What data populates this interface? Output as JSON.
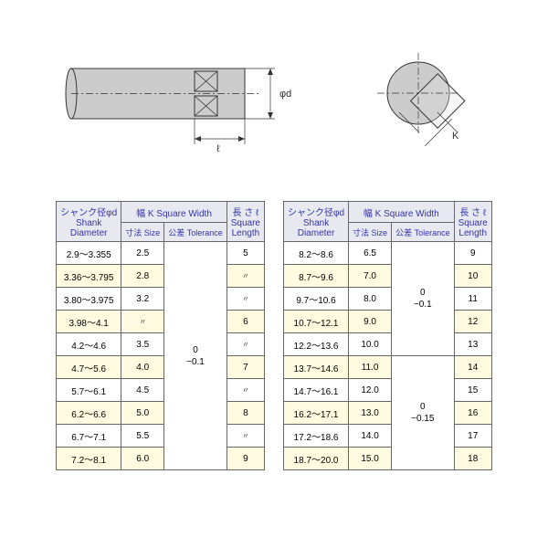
{
  "headers": {
    "shank_jp": "シャンク径φd",
    "shank_en": "Shank Diameter",
    "width_label": "幅 K  Square Width",
    "size_jp": "寸法",
    "size_en": "Size",
    "tol_jp": "公差",
    "tol_en": "Tolerance",
    "length_jp": "長 さ ℓ",
    "length_en": "Square Length"
  },
  "tableLeft": {
    "tolerance": "0\n−0.1",
    "rows": [
      {
        "d": "2.9～3.355",
        "size": "2.5",
        "len": "5",
        "shaded": false
      },
      {
        "d": "3.36～3.795",
        "size": "2.8",
        "len": "〃",
        "shaded": true
      },
      {
        "d": "3.80～3.975",
        "size": "3.2",
        "len": "〃",
        "shaded": false
      },
      {
        "d": "3.98～4.1",
        "size": "〃",
        "len": "6",
        "shaded": true
      },
      {
        "d": "4.2～4.6",
        "size": "3.5",
        "len": "〃",
        "shaded": false
      },
      {
        "d": "4.7～5.6",
        "size": "4.0",
        "len": "7",
        "shaded": true
      },
      {
        "d": "5.7～6.1",
        "size": "4.5",
        "len": "〃",
        "shaded": false
      },
      {
        "d": "6.2～6.6",
        "size": "5.0",
        "len": "8",
        "shaded": true
      },
      {
        "d": "6.7～7.1",
        "size": "5.5",
        "len": "〃",
        "shaded": false
      },
      {
        "d": "7.2～8.1",
        "size": "6.0",
        "len": "9",
        "shaded": true
      }
    ]
  },
  "tableRight": {
    "tolerance1": "0\n−0.1",
    "tolerance2": "0\n−0.15",
    "split_at": 5,
    "rows": [
      {
        "d": "8.2～8.6",
        "size": "6.5",
        "len": "9",
        "shaded": false
      },
      {
        "d": "8.7～9.6",
        "size": "7.0",
        "len": "10",
        "shaded": true
      },
      {
        "d": "9.7～10.6",
        "size": "8.0",
        "len": "11",
        "shaded": false
      },
      {
        "d": "10.7～12.1",
        "size": "9.0",
        "len": "12",
        "shaded": true
      },
      {
        "d": "12.2～13.6",
        "size": "10.0",
        "len": "13",
        "shaded": false
      },
      {
        "d": "13.7～14.6",
        "size": "11.0",
        "len": "14",
        "shaded": true
      },
      {
        "d": "14.7～16.1",
        "size": "12.0",
        "len": "15",
        "shaded": false
      },
      {
        "d": "16.2～17.1",
        "size": "13.0",
        "len": "16",
        "shaded": true
      },
      {
        "d": "17.2～18.6",
        "size": "14.0",
        "len": "17",
        "shaded": false
      },
      {
        "d": "18.7～20.0",
        "size": "15.0",
        "len": "18",
        "shaded": true
      }
    ]
  },
  "diagram": {
    "label_d": "φd",
    "label_l": "ℓ",
    "label_k": "K",
    "shank_fill": "#cccccc",
    "line_color": "#333333"
  }
}
